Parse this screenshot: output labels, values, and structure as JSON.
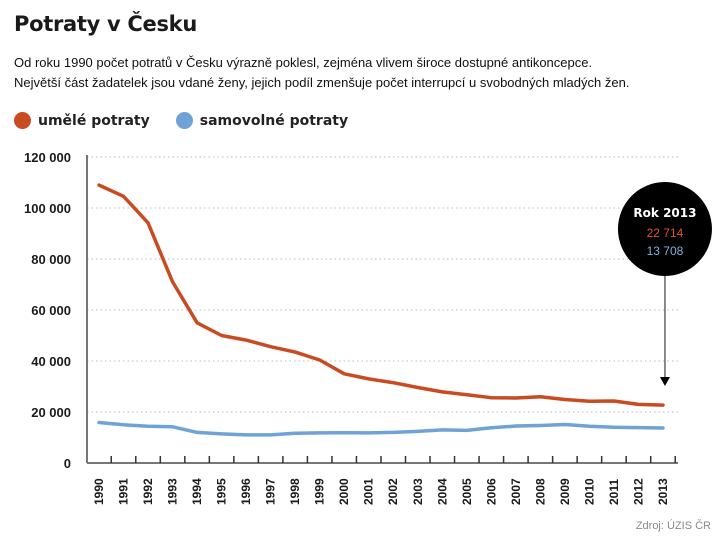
{
  "title": "Potraty v Česku",
  "subtitle": {
    "line1": "Od roku 1990 počet potratů v Česku výrazně poklesl, zejména vlivem široce dostupné antikoncepce.",
    "line2": "Největší část žadatelek jsou vdané ženy, jejich podíl zmenšuje počet interrupcí u svobodných mladých žen."
  },
  "source": "Zdroj: ÚZIS ČR",
  "callout": {
    "title": "Rok 2013",
    "value1": "22 714",
    "value2": "13 708"
  },
  "colors": {
    "induced": "#c84b22",
    "spontaneous": "#6fa3d6",
    "axis": "#777777",
    "grid": "#bbbbbb",
    "callout_bg": "#000000"
  },
  "chart_data": {
    "type": "line",
    "title": "Potraty v Česku",
    "xlabel": "",
    "ylabel": "",
    "ylim": [
      0,
      120000
    ],
    "yticks": [
      0,
      20000,
      40000,
      60000,
      80000,
      100000,
      120000
    ],
    "ytick_labels": [
      "0",
      "20 000",
      "40 000",
      "60 000",
      "80 000",
      "100 000",
      "120 000"
    ],
    "grid": true,
    "legend_position": "top-left",
    "x": [
      "1990",
      "1991",
      "1992",
      "1993",
      "1994",
      "1995",
      "1996",
      "1997",
      "1998",
      "1999",
      "2000",
      "2001",
      "2002",
      "2003",
      "2004",
      "2005",
      "2006",
      "2007",
      "2008",
      "2009",
      "2010",
      "2011",
      "2012",
      "2013"
    ],
    "series": [
      {
        "name": "umělé potraty",
        "color": "#c84b22",
        "values": [
          109000,
          104600,
          94200,
          71000,
          55000,
          50000,
          48200,
          45600,
          43500,
          40400,
          35000,
          33000,
          31500,
          29600,
          27900,
          26800,
          25600,
          25500,
          26000,
          24900,
          24200,
          24300,
          23000,
          22714
        ]
      },
      {
        "name": "samovolné potraty",
        "color": "#6fa3d6",
        "values": [
          15900,
          15000,
          14400,
          14200,
          12000,
          11400,
          11000,
          11000,
          11700,
          11800,
          11900,
          11800,
          12000,
          12400,
          13000,
          12800,
          13800,
          14500,
          14700,
          15100,
          14400,
          14000,
          13900,
          13708
        ]
      }
    ],
    "annotations": [
      {
        "x": "2013",
        "label": "Rok 2013",
        "values": [
          "22 714",
          "13 708"
        ]
      }
    ]
  }
}
